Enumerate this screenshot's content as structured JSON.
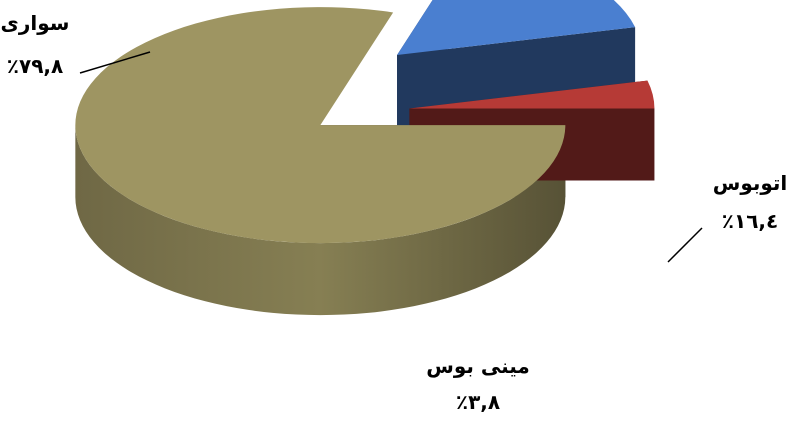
{
  "chart_data": {
    "type": "pie",
    "style": "3d-exploded",
    "slices": [
      {
        "label": "سواری",
        "value": 79.8,
        "display_value": "٪۷۹,۸",
        "color": "#9e9562"
      },
      {
        "label": "اتوبوس",
        "value": 16.4,
        "display_value": "٪۱٦,٤",
        "color": "#4a7fd0"
      },
      {
        "label": "مینی بوس",
        "value": 3.8,
        "display_value": "٪۳,۸",
        "color": "#b63a36"
      }
    ]
  }
}
